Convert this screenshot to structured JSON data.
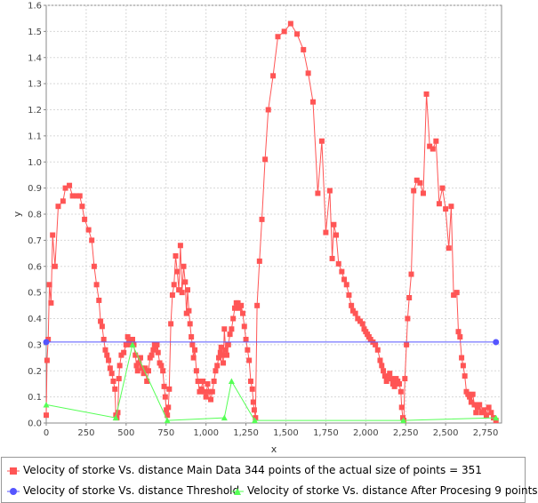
{
  "chart_data": {
    "type": "line",
    "title": "",
    "xlabel": "x",
    "ylabel": "y",
    "xlim": [
      0,
      2850
    ],
    "ylim": [
      0,
      1.6
    ],
    "x_ticks": [
      "0",
      "250",
      "500",
      "750",
      "1,000",
      "1,250",
      "1,500",
      "1,750",
      "2,000",
      "2,250",
      "2,500",
      "2,750"
    ],
    "y_ticks": [
      "0.0",
      "0.1",
      "0.2",
      "0.3",
      "0.4",
      "0.5",
      "0.6",
      "0.7",
      "0.8",
      "0.9",
      "1.0",
      "1.1",
      "1.2",
      "1.3",
      "1.4",
      "1.5",
      "1.6"
    ],
    "grid": true,
    "legend_position": "bottom",
    "series": [
      {
        "name": "Velocity of storke Vs. distance Main Data  344  points of the actual size of points = 351",
        "color": "#ff5555",
        "marker": "square",
        "points": [
          [
            0,
            0.03
          ],
          [
            5,
            0.24
          ],
          [
            12,
            0.32
          ],
          [
            20,
            0.53
          ],
          [
            30,
            0.46
          ],
          [
            40,
            0.72
          ],
          [
            55,
            0.6
          ],
          [
            75,
            0.83
          ],
          [
            105,
            0.85
          ],
          [
            120,
            0.9
          ],
          [
            145,
            0.91
          ],
          [
            165,
            0.87
          ],
          [
            190,
            0.87
          ],
          [
            210,
            0.87
          ],
          [
            225,
            0.83
          ],
          [
            240,
            0.78
          ],
          [
            265,
            0.74
          ],
          [
            285,
            0.7
          ],
          [
            300,
            0.6
          ],
          [
            315,
            0.53
          ],
          [
            330,
            0.47
          ],
          [
            340,
            0.39
          ],
          [
            350,
            0.37
          ],
          [
            360,
            0.32
          ],
          [
            370,
            0.28
          ],
          [
            380,
            0.26
          ],
          [
            390,
            0.24
          ],
          [
            400,
            0.21
          ],
          [
            410,
            0.19
          ],
          [
            420,
            0.16
          ],
          [
            430,
            0.13
          ],
          [
            436,
            0.03
          ],
          [
            442,
            0.02
          ],
          [
            448,
            0.04
          ],
          [
            455,
            0.17
          ],
          [
            460,
            0.22
          ],
          [
            470,
            0.26
          ],
          [
            485,
            0.27
          ],
          [
            500,
            0.3
          ],
          [
            510,
            0.33
          ],
          [
            520,
            0.31
          ],
          [
            530,
            0.3
          ],
          [
            540,
            0.32
          ],
          [
            548,
            0.3
          ],
          [
            558,
            0.26
          ],
          [
            565,
            0.22
          ],
          [
            572,
            0.2
          ],
          [
            580,
            0.23
          ],
          [
            590,
            0.25
          ],
          [
            600,
            0.21
          ],
          [
            610,
            0.19
          ],
          [
            620,
            0.21
          ],
          [
            630,
            0.16
          ],
          [
            640,
            0.2
          ],
          [
            650,
            0.25
          ],
          [
            660,
            0.26
          ],
          [
            670,
            0.28
          ],
          [
            678,
            0.3
          ],
          [
            685,
            0.29
          ],
          [
            693,
            0.3
          ],
          [
            700,
            0.27
          ],
          [
            710,
            0.23
          ],
          [
            720,
            0.22
          ],
          [
            730,
            0.2
          ],
          [
            738,
            0.14
          ],
          [
            745,
            0.1
          ],
          [
            752,
            0.05
          ],
          [
            758,
            0.03
          ],
          [
            764,
            0.06
          ],
          [
            770,
            0.13
          ],
          [
            780,
            0.38
          ],
          [
            790,
            0.49
          ],
          [
            800,
            0.53
          ],
          [
            810,
            0.64
          ],
          [
            820,
            0.58
          ],
          [
            830,
            0.51
          ],
          [
            840,
            0.68
          ],
          [
            850,
            0.5
          ],
          [
            860,
            0.6
          ],
          [
            870,
            0.54
          ],
          [
            878,
            0.42
          ],
          [
            885,
            0.51
          ],
          [
            893,
            0.43
          ],
          [
            900,
            0.38
          ],
          [
            908,
            0.33
          ],
          [
            915,
            0.3
          ],
          [
            922,
            0.25
          ],
          [
            930,
            0.28
          ],
          [
            940,
            0.2
          ],
          [
            950,
            0.16
          ],
          [
            960,
            0.12
          ],
          [
            970,
            0.13
          ],
          [
            980,
            0.16
          ],
          [
            990,
            0.12
          ],
          [
            1000,
            0.1
          ],
          [
            1010,
            0.15
          ],
          [
            1020,
            0.12
          ],
          [
            1030,
            0.09
          ],
          [
            1040,
            0.12
          ],
          [
            1050,
            0.16
          ],
          [
            1060,
            0.2
          ],
          [
            1070,
            0.22
          ],
          [
            1080,
            0.25
          ],
          [
            1090,
            0.27
          ],
          [
            1095,
            0.29
          ],
          [
            1100,
            0.26
          ],
          [
            1108,
            0.23
          ],
          [
            1115,
            0.36
          ],
          [
            1123,
            0.28
          ],
          [
            1130,
            0.26
          ],
          [
            1140,
            0.3
          ],
          [
            1150,
            0.34
          ],
          [
            1160,
            0.36
          ],
          [
            1170,
            0.4
          ],
          [
            1180,
            0.44
          ],
          [
            1190,
            0.46
          ],
          [
            1200,
            0.46
          ],
          [
            1210,
            0.44
          ],
          [
            1220,
            0.45
          ],
          [
            1230,
            0.42
          ],
          [
            1240,
            0.37
          ],
          [
            1250,
            0.32
          ],
          [
            1260,
            0.28
          ],
          [
            1270,
            0.24
          ],
          [
            1280,
            0.16
          ],
          [
            1290,
            0.13
          ],
          [
            1296,
            0.08
          ],
          [
            1302,
            0.05
          ],
          [
            1310,
            0.02
          ],
          [
            1320,
            0.45
          ],
          [
            1335,
            0.62
          ],
          [
            1350,
            0.78
          ],
          [
            1370,
            1.01
          ],
          [
            1390,
            1.2
          ],
          [
            1420,
            1.33
          ],
          [
            1450,
            1.48
          ],
          [
            1490,
            1.5
          ],
          [
            1530,
            1.53
          ],
          [
            1570,
            1.49
          ],
          [
            1610,
            1.43
          ],
          [
            1640,
            1.34
          ],
          [
            1670,
            1.23
          ],
          [
            1700,
            0.88
          ],
          [
            1725,
            1.08
          ],
          [
            1750,
            0.73
          ],
          [
            1775,
            0.89
          ],
          [
            1790,
            0.63
          ],
          [
            1800,
            0.76
          ],
          [
            1815,
            0.72
          ],
          [
            1830,
            0.61
          ],
          [
            1850,
            0.58
          ],
          [
            1865,
            0.55
          ],
          [
            1880,
            0.53
          ],
          [
            1895,
            0.49
          ],
          [
            1910,
            0.45
          ],
          [
            1920,
            0.43
          ],
          [
            1935,
            0.42
          ],
          [
            1950,
            0.4
          ],
          [
            1965,
            0.39
          ],
          [
            1980,
            0.38
          ],
          [
            1990,
            0.36
          ],
          [
            2000,
            0.35
          ],
          [
            2010,
            0.34
          ],
          [
            2020,
            0.33
          ],
          [
            2030,
            0.32
          ],
          [
            2045,
            0.31
          ],
          [
            2060,
            0.3
          ],
          [
            2075,
            0.28
          ],
          [
            2090,
            0.24
          ],
          [
            2100,
            0.22
          ],
          [
            2110,
            0.2
          ],
          [
            2120,
            0.18
          ],
          [
            2130,
            0.16
          ],
          [
            2140,
            0.17
          ],
          [
            2150,
            0.19
          ],
          [
            2160,
            0.17
          ],
          [
            2170,
            0.15
          ],
          [
            2180,
            0.14
          ],
          [
            2190,
            0.17
          ],
          [
            2200,
            0.16
          ],
          [
            2210,
            0.15
          ],
          [
            2220,
            0.12
          ],
          [
            2225,
            0.06
          ],
          [
            2232,
            0.02
          ],
          [
            2238,
            0.01
          ],
          [
            2245,
            0.17
          ],
          [
            2255,
            0.3
          ],
          [
            2262,
            0.4
          ],
          [
            2272,
            0.48
          ],
          [
            2285,
            0.57
          ],
          [
            2300,
            0.89
          ],
          [
            2320,
            0.93
          ],
          [
            2340,
            0.92
          ],
          [
            2360,
            0.88
          ],
          [
            2380,
            1.26
          ],
          [
            2400,
            1.06
          ],
          [
            2420,
            1.05
          ],
          [
            2440,
            1.08
          ],
          [
            2460,
            0.84
          ],
          [
            2480,
            0.9
          ],
          [
            2500,
            0.82
          ],
          [
            2520,
            0.67
          ],
          [
            2535,
            0.83
          ],
          [
            2550,
            0.49
          ],
          [
            2570,
            0.5
          ],
          [
            2580,
            0.35
          ],
          [
            2590,
            0.33
          ],
          [
            2600,
            0.25
          ],
          [
            2610,
            0.22
          ],
          [
            2620,
            0.18
          ],
          [
            2630,
            0.12
          ],
          [
            2640,
            0.11
          ],
          [
            2650,
            0.1
          ],
          [
            2660,
            0.08
          ],
          [
            2670,
            0.11
          ],
          [
            2680,
            0.07
          ],
          [
            2690,
            0.04
          ],
          [
            2700,
            0.06
          ],
          [
            2712,
            0.07
          ],
          [
            2725,
            0.04
          ],
          [
            2740,
            0.05
          ],
          [
            2755,
            0.03
          ],
          [
            2770,
            0.06
          ],
          [
            2785,
            0.04
          ],
          [
            2800,
            0.02
          ],
          [
            2815,
            0.01
          ]
        ]
      },
      {
        "name": "Velocity of storke Vs. distance  Threshold",
        "color": "#5555ff",
        "marker": "circle",
        "points": [
          [
            0,
            0.31
          ],
          [
            2815,
            0.31
          ]
        ]
      },
      {
        "name": "Velocity of storke Vs. distance  After Procesing  9  points",
        "color": "#55ff55",
        "marker": "triangle",
        "points": [
          [
            0,
            0.07
          ],
          [
            435,
            0.02
          ],
          [
            540,
            0.3
          ],
          [
            758,
            0.01
          ],
          [
            1115,
            0.02
          ],
          [
            1160,
            0.16
          ],
          [
            1305,
            0.01
          ],
          [
            2235,
            0.01
          ],
          [
            2815,
            0.02
          ]
        ]
      }
    ]
  }
}
